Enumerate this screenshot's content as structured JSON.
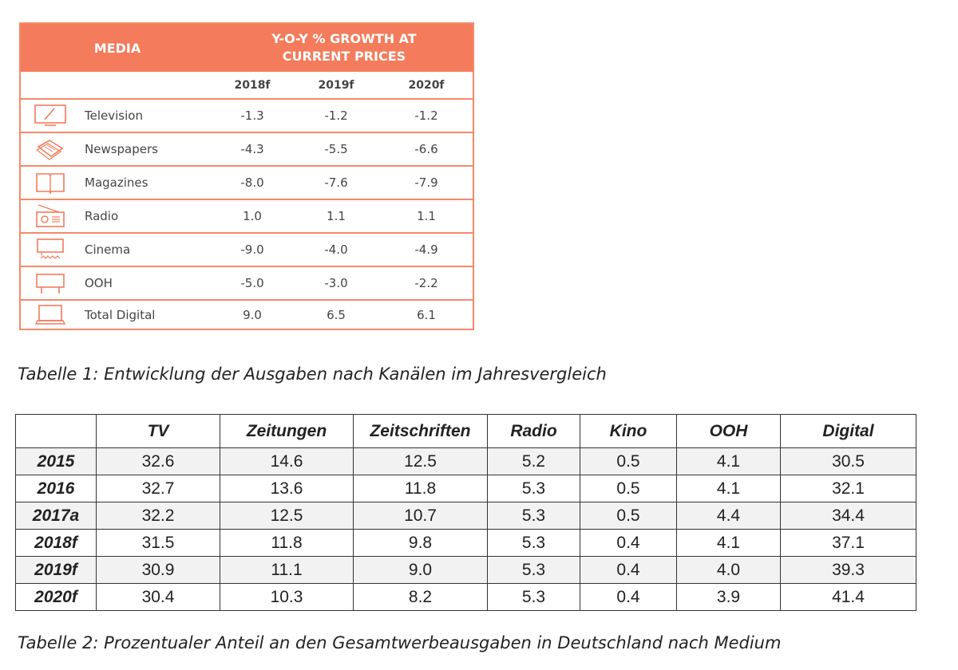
{
  "table1": {
    "header_media": "MEDIA",
    "header_growth": "Y-O-Y % GROWTH AT\nCURRENT PRICES",
    "years": [
      "2018f",
      "2019f",
      "2020f"
    ],
    "accent_color": "#f47b5b",
    "rows": [
      {
        "icon": "television-icon",
        "name": "Television",
        "values": [
          "-1.3",
          "-1.2",
          "-1.2"
        ]
      },
      {
        "icon": "newspaper-icon",
        "name": "Newspapers",
        "values": [
          "-4.3",
          "-5.5",
          "-6.6"
        ]
      },
      {
        "icon": "magazine-icon",
        "name": "Magazines",
        "values": [
          "-8.0",
          "-7.6",
          "-7.9"
        ]
      },
      {
        "icon": "radio-icon",
        "name": "Radio",
        "values": [
          "1.0",
          "1.1",
          "1.1"
        ]
      },
      {
        "icon": "cinema-icon",
        "name": "Cinema",
        "values": [
          "-9.0",
          "-4.0",
          "-4.9"
        ]
      },
      {
        "icon": "billboard-icon",
        "name": "OOH",
        "values": [
          "-5.0",
          "-3.0",
          "-2.2"
        ]
      },
      {
        "icon": "laptop-icon",
        "name": "Total Digital",
        "values": [
          "9.0",
          "6.5",
          "6.1"
        ]
      }
    ]
  },
  "caption1": "Tabelle 1: Entwicklung der Ausgaben nach Kanälen im Jahresvergleich",
  "table2": {
    "columns": [
      "TV",
      "Zeitungen",
      "Zeitschriften",
      "Radio",
      "Kino",
      "OOH",
      "Digital"
    ],
    "rows": [
      {
        "year": "2015",
        "values": [
          "32.6",
          "14.6",
          "12.5",
          "5.2",
          "0.5",
          "4.1",
          "30.5"
        ]
      },
      {
        "year": "2016",
        "values": [
          "32.7",
          "13.6",
          "11.8",
          "5.3",
          "0.5",
          "4.1",
          "32.1"
        ]
      },
      {
        "year": "2017a",
        "values": [
          "32.2",
          "12.5",
          "10.7",
          "5.3",
          "0.5",
          "4.4",
          "34.4"
        ]
      },
      {
        "year": "2018f",
        "values": [
          "31.5",
          "11.8",
          "9.8",
          "5.3",
          "0.4",
          "4.1",
          "37.1"
        ]
      },
      {
        "year": "2019f",
        "values": [
          "30.9",
          "11.1",
          "9.0",
          "5.3",
          "0.4",
          "4.0",
          "39.3"
        ]
      },
      {
        "year": "2020f",
        "values": [
          "30.4",
          "10.3",
          "8.2",
          "5.3",
          "0.4",
          "3.9",
          "41.4"
        ]
      }
    ]
  },
  "caption2": "Tabelle 2: Prozentualer Anteil an den Gesamtwerbeausgaben in Deutschland nach Medium"
}
